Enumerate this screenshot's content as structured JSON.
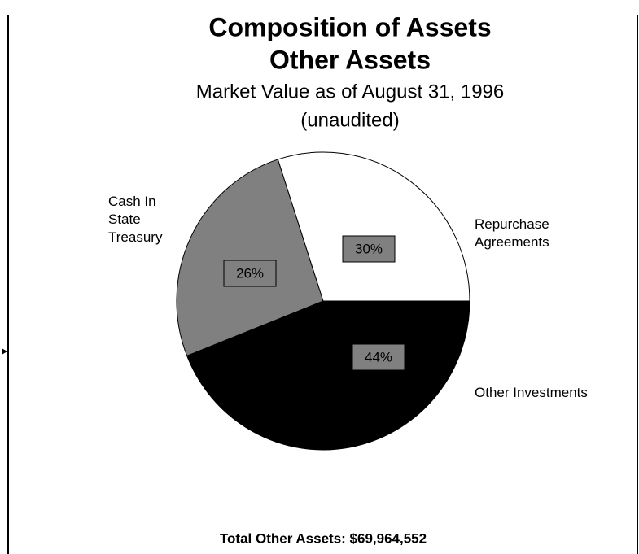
{
  "chart_data": {
    "type": "pie",
    "title": "Composition of Assets",
    "subtitle": "Other Assets",
    "annotations": [
      "Market Value as of August 31, 1996",
      "(unaudited)"
    ],
    "footer": "Total Other Assets:  $69,964,552",
    "categories": [
      "Other Investments",
      "Cash In State Treasury",
      "Repurchase Agreements"
    ],
    "values": [
      44,
      26,
      30
    ],
    "value_labels": [
      "44%",
      "26%",
      "30%"
    ],
    "colors": [
      "#000000",
      "#808080",
      "#ffffff"
    ]
  }
}
